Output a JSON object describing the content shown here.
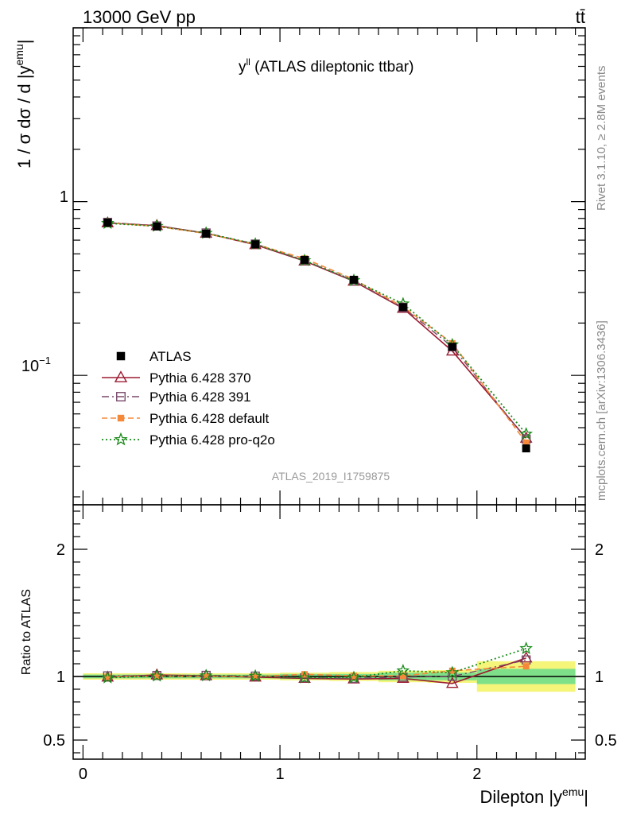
{
  "header": {
    "left_title": "13000 GeV pp",
    "right_title": "tt̄"
  },
  "side_labels": {
    "rivet": "Rivet 3.1.10, ≥ 2.8M events",
    "mcplots": "mcplots.cern.ch [arXiv:1306.3436]"
  },
  "colors": {
    "atlas": "#000000",
    "p370": "#9b1b30",
    "p391": "#7a4a6a",
    "pdefault": "#f5893a",
    "pq2o": "#1a8a1a",
    "band_inner": "#7fe08a",
    "band_outer": "#f5f57a"
  },
  "chart_data": [
    {
      "type": "line",
      "panel": "main",
      "title": "y",
      "title_sup": "ll",
      "title_suffix": " (ATLAS dileptonic ttbar)",
      "ylabel": "1 / σ  dσ / d |y",
      "ylabel_sup": "emu",
      "ylabel_end": "|",
      "yscale": "log",
      "ylim": [
        0.018,
        10
      ],
      "xlim": [
        -0.05,
        2.55
      ],
      "y_tick_labels": [
        "1",
        "10",
        "−1"
      ],
      "watermark": "ATLAS_2019_I1759875",
      "x": [
        0.125,
        0.375,
        0.625,
        0.875,
        1.125,
        1.375,
        1.625,
        1.875,
        2.25
      ],
      "x_edges": [
        0,
        0.25,
        0.5,
        0.75,
        1.0,
        1.25,
        1.5,
        1.75,
        2.0,
        2.5
      ],
      "series": [
        {
          "key": "atlas",
          "name": "ATLAS",
          "values": [
            0.757,
            0.719,
            0.654,
            0.568,
            0.462,
            0.355,
            0.247,
            0.146,
            0.038
          ]
        },
        {
          "key": "p370",
          "name": "Pythia 6.428 370",
          "values": [
            0.754,
            0.728,
            0.657,
            0.565,
            0.455,
            0.348,
            0.243,
            0.138,
            0.0435
          ]
        },
        {
          "key": "p391",
          "name": "Pythia 6.428 391",
          "values": [
            0.76,
            0.725,
            0.66,
            0.57,
            0.458,
            0.35,
            0.246,
            0.146,
            0.043
          ]
        },
        {
          "key": "pdefault",
          "name": "Pythia 6.428 default",
          "values": [
            0.755,
            0.72,
            0.655,
            0.568,
            0.47,
            0.357,
            0.248,
            0.153,
            0.041
          ]
        },
        {
          "key": "pq2o",
          "name": "Pythia 6.428 pro-q2o",
          "values": [
            0.75,
            0.722,
            0.658,
            0.57,
            0.458,
            0.352,
            0.258,
            0.15,
            0.046
          ]
        }
      ]
    },
    {
      "type": "line",
      "panel": "ratio",
      "ylabel": "Ratio to ATLAS",
      "xlabel": "Dilepton |y",
      "xlabel_sup": "emu",
      "xlabel_end": "|",
      "ylim": [
        0.35,
        2.35
      ],
      "xlim": [
        -0.05,
        2.55
      ],
      "y_ticks": [
        0.5,
        1,
        2
      ],
      "y_tick_labels": [
        "0.5",
        "1",
        "2"
      ],
      "x_ticks": [
        0,
        1,
        2
      ],
      "x_tick_labels": [
        "0",
        "1",
        "2"
      ],
      "x": [
        0.125,
        0.375,
        0.625,
        0.875,
        1.125,
        1.375,
        1.625,
        1.875,
        2.25
      ],
      "band_inner": [
        0.015,
        0.015,
        0.015,
        0.015,
        0.02,
        0.02,
        0.03,
        0.03,
        0.06
      ],
      "band_outer": [
        0.025,
        0.025,
        0.025,
        0.025,
        0.03,
        0.035,
        0.045,
        0.05,
        0.12
      ],
      "series": [
        {
          "key": "p370",
          "name": "Pythia 6.428 370",
          "values": [
            0.995,
            1.012,
            1.005,
            0.995,
            0.985,
            0.98,
            0.985,
            0.945,
            1.145
          ]
        },
        {
          "key": "p391",
          "name": "Pythia 6.428 391",
          "values": [
            1.005,
            1.008,
            1.009,
            1.003,
            0.99,
            0.985,
            0.995,
            1.0,
            1.13
          ]
        },
        {
          "key": "pdefault",
          "name": "Pythia 6.428 default",
          "values": [
            0.998,
            1.002,
            1.001,
            1.0,
            1.017,
            1.005,
            1.005,
            1.045,
            1.08
          ]
        },
        {
          "key": "pq2o",
          "name": "Pythia 6.428 pro-q2o",
          "values": [
            0.99,
            1.004,
            1.006,
            1.003,
            0.99,
            0.992,
            1.045,
            1.03,
            1.22
          ]
        }
      ]
    }
  ]
}
